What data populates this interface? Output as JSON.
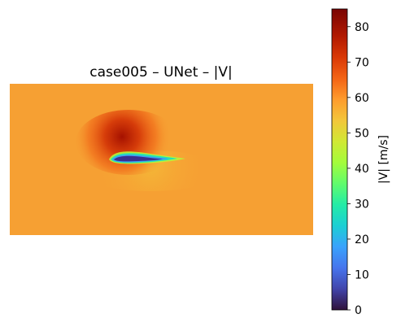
{
  "chart_data": {
    "type": "heatmap",
    "title": "case005 – UNet – |V|",
    "colorbar": {
      "label": "|V| [m/s]",
      "range": [
        0,
        85
      ],
      "ticks": [
        0,
        10,
        20,
        30,
        40,
        50,
        60,
        70,
        80
      ],
      "colormap": "turbo"
    },
    "axes_visible": false,
    "field": {
      "freestream_value": 61,
      "max_value": 84,
      "min_value": 0,
      "body": "airfoil"
    }
  }
}
